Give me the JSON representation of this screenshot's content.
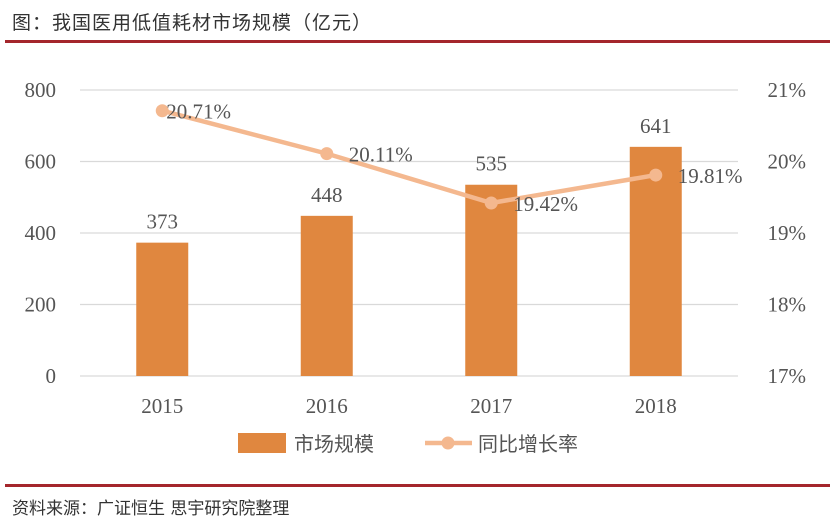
{
  "title": "图：我国医用低值耗材市场规模（亿元）",
  "source": "资料来源：广证恒生 思宇研究院整理",
  "chart_data": {
    "type": "bar+line",
    "categories": [
      "2015",
      "2016",
      "2017",
      "2018"
    ],
    "series": [
      {
        "name": "市场规模",
        "type": "bar",
        "axis": "left",
        "values": [
          373,
          448,
          535,
          641
        ],
        "labels": [
          "373",
          "448",
          "535",
          "641"
        ],
        "color": "#e0873f"
      },
      {
        "name": "同比增长率",
        "type": "line",
        "axis": "right",
        "values": [
          20.71,
          20.11,
          19.42,
          19.81
        ],
        "labels": [
          "20.71%",
          "20.11%",
          "19.42%",
          "19.81%"
        ],
        "color": "#f4b88f"
      }
    ],
    "left_axis": {
      "range": [
        0,
        800
      ],
      "ticks": [
        "0",
        "200",
        "400",
        "600",
        "800"
      ]
    },
    "right_axis": {
      "range": [
        17,
        21
      ],
      "ticks": [
        "17%",
        "18%",
        "19%",
        "20%",
        "21%"
      ]
    },
    "grid": true,
    "legend": "bottom"
  }
}
